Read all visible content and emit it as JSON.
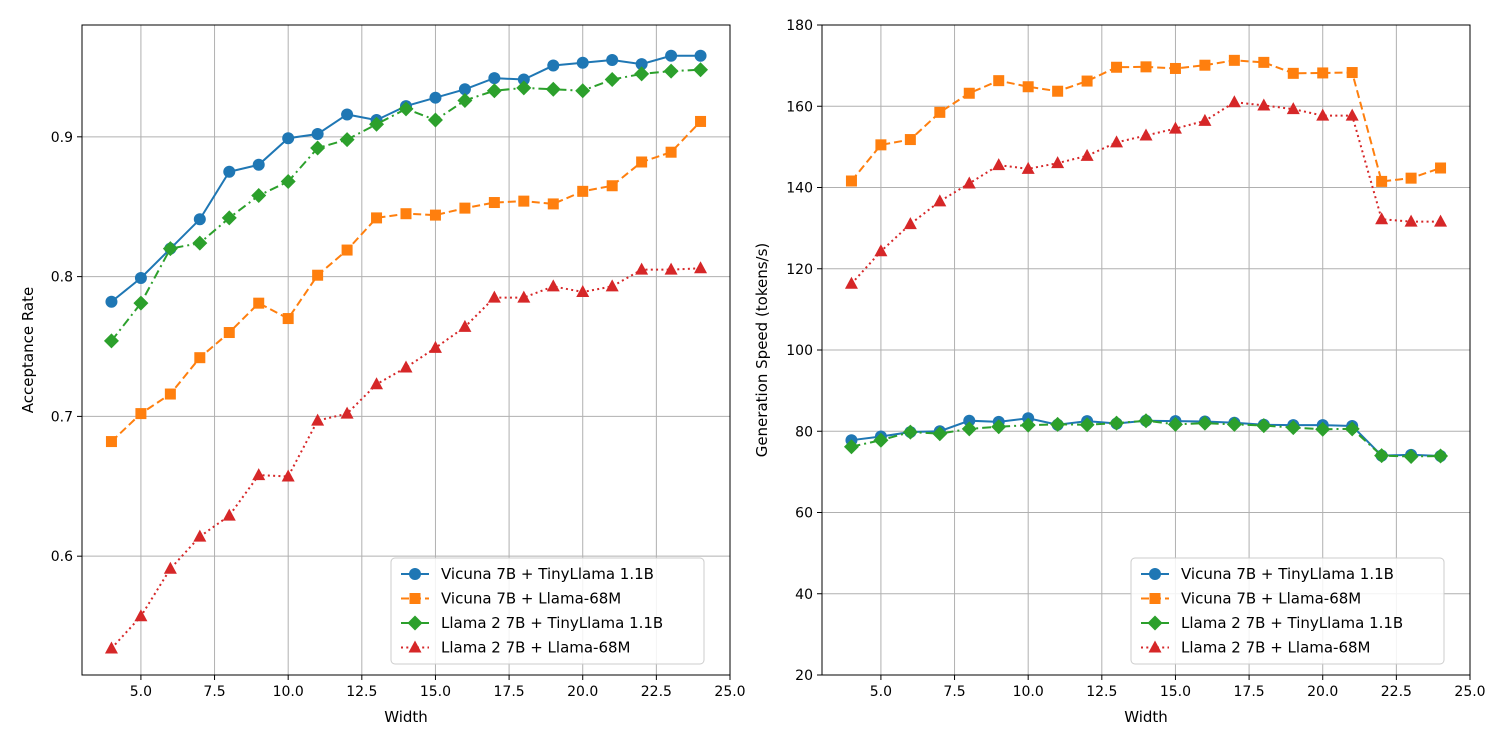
{
  "chart_data": [
    {
      "type": "line",
      "title": "",
      "xlabel": "Width",
      "ylabel": "Acceptance Rate",
      "xlim": [
        3.0,
        25.0
      ],
      "ylim": [
        0.515,
        0.98
      ],
      "xticks": [
        5.0,
        7.5,
        10.0,
        12.5,
        15.0,
        17.5,
        20.0,
        22.5,
        25.0
      ],
      "xtick_labels": [
        "5.0",
        "7.5",
        "10.0",
        "12.5",
        "15.0",
        "17.5",
        "20.0",
        "22.5",
        "25.0"
      ],
      "yticks": [
        0.6,
        0.7,
        0.8,
        0.9
      ],
      "ytick_labels": [
        "0.6",
        "0.7",
        "0.8",
        "0.9"
      ],
      "grid": true,
      "legend_position": "lower-right",
      "x": [
        4,
        5,
        6,
        7,
        8,
        9,
        10,
        11,
        12,
        13,
        14,
        15,
        16,
        17,
        18,
        19,
        20,
        21,
        22,
        23,
        24
      ],
      "series": [
        {
          "name": "Vicuna 7B + TinyLlama 1.1B",
          "color": "#1f77b4",
          "marker": "circle",
          "linestyle": "solid",
          "values": [
            0.782,
            0.799,
            0.82,
            0.841,
            0.875,
            0.88,
            0.899,
            0.902,
            0.916,
            0.912,
            0.922,
            0.928,
            0.934,
            0.942,
            0.941,
            0.951,
            0.953,
            0.955,
            0.952,
            0.958,
            0.958
          ]
        },
        {
          "name": "Vicuna 7B + Llama-68M",
          "color": "#ff7f0e",
          "marker": "square",
          "linestyle": "dashed",
          "values": [
            0.682,
            0.702,
            0.716,
            0.742,
            0.76,
            0.781,
            0.77,
            0.801,
            0.819,
            0.842,
            0.845,
            0.844,
            0.849,
            0.853,
            0.854,
            0.852,
            0.861,
            0.865,
            0.882,
            0.889,
            0.911
          ]
        },
        {
          "name": "Llama 2 7B + TinyLlama 1.1B",
          "color": "#2ca02c",
          "marker": "diamond",
          "linestyle": "dashdot",
          "values": [
            0.754,
            0.781,
            0.82,
            0.824,
            0.842,
            0.858,
            0.868,
            0.892,
            0.898,
            0.909,
            0.92,
            0.912,
            0.926,
            0.933,
            0.935,
            0.934,
            0.933,
            0.941,
            0.945,
            0.947,
            0.948
          ]
        },
        {
          "name": "Llama 2 7B + Llama-68M",
          "color": "#d62728",
          "marker": "triangle",
          "linestyle": "dotted",
          "values": [
            0.534,
            0.557,
            0.591,
            0.614,
            0.629,
            0.658,
            0.657,
            0.697,
            0.702,
            0.723,
            0.735,
            0.749,
            0.764,
            0.785,
            0.785,
            0.793,
            0.789,
            0.793,
            0.805,
            0.805,
            0.806
          ]
        }
      ]
    },
    {
      "type": "line",
      "title": "",
      "xlabel": "Width",
      "ylabel": "Generation Speed (tokens/s)",
      "xlim": [
        3.0,
        25.0
      ],
      "ylim": [
        20,
        180
      ],
      "xticks": [
        5.0,
        7.5,
        10.0,
        12.5,
        15.0,
        17.5,
        20.0,
        22.5,
        25.0
      ],
      "xtick_labels": [
        "5.0",
        "7.5",
        "10.0",
        "12.5",
        "15.0",
        "17.5",
        "20.0",
        "22.5",
        "25.0"
      ],
      "yticks": [
        20,
        40,
        60,
        80,
        100,
        120,
        140,
        160,
        180
      ],
      "ytick_labels": [
        "20",
        "40",
        "60",
        "80",
        "100",
        "120",
        "140",
        "160",
        "180"
      ],
      "grid": true,
      "legend_position": "lower-right",
      "x": [
        4,
        5,
        6,
        7,
        8,
        9,
        10,
        11,
        12,
        13,
        14,
        15,
        16,
        17,
        18,
        19,
        20,
        21,
        22,
        23,
        24
      ],
      "series": [
        {
          "name": "Vicuna 7B + TinyLlama 1.1B",
          "color": "#1f77b4",
          "marker": "circle",
          "linestyle": "solid",
          "values": [
            77.8,
            78.7,
            79.8,
            80.0,
            82.6,
            82.3,
            83.2,
            81.6,
            82.5,
            81.9,
            82.6,
            82.5,
            82.4,
            82.1,
            81.6,
            81.5,
            81.5,
            81.3,
            74.0,
            74.2,
            73.9
          ]
        },
        {
          "name": "Vicuna 7B + Llama-68M",
          "color": "#ff7f0e",
          "marker": "square",
          "linestyle": "dashed",
          "values": [
            141.6,
            150.5,
            151.8,
            158.5,
            163.2,
            166.3,
            164.8,
            163.7,
            166.2,
            169.6,
            169.7,
            169.3,
            170.1,
            171.3,
            170.8,
            168.1,
            168.2,
            168.3,
            141.5,
            142.3,
            144.8
          ]
        },
        {
          "name": "Llama 2 7B + TinyLlama 1.1B",
          "color": "#2ca02c",
          "marker": "diamond",
          "linestyle": "dashdot",
          "values": [
            76.2,
            77.8,
            79.8,
            79.4,
            80.6,
            81.1,
            81.5,
            81.7,
            81.6,
            82.0,
            82.6,
            81.7,
            82.0,
            81.7,
            81.4,
            80.9,
            80.5,
            80.6,
            74.0,
            73.8,
            73.9
          ]
        },
        {
          "name": "Llama 2 7B + Llama-68M",
          "color": "#d62728",
          "marker": "triangle",
          "linestyle": "dotted",
          "values": [
            116.3,
            124.3,
            131.0,
            136.6,
            141.0,
            145.5,
            144.6,
            146.0,
            147.8,
            151.1,
            152.8,
            154.5,
            156.4,
            161.0,
            160.2,
            159.3,
            157.7,
            157.7,
            132.2,
            131.6,
            131.6
          ]
        }
      ]
    }
  ]
}
